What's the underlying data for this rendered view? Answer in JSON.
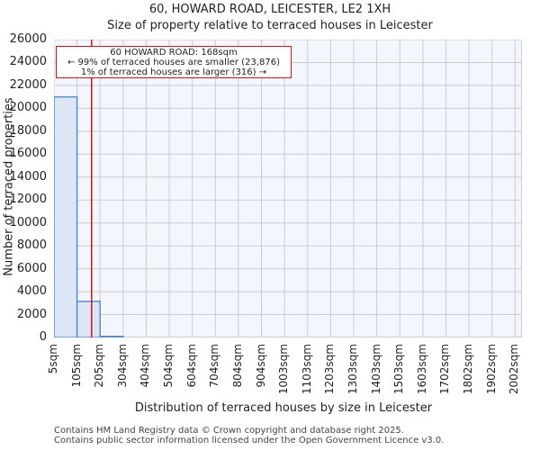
{
  "header": {
    "title": "60, HOWARD ROAD, LEICESTER, LE2 1XH",
    "subtitle": "Size of property relative to terraced houses in Leicester"
  },
  "annotation": {
    "line1": "60 HOWARD ROAD: 168sqm",
    "line2": "← 99% of terraced houses are smaller (23,876)",
    "line3": "1% of terraced houses are larger (316) →"
  },
  "axes": {
    "xlabel": "Distribution of terraced houses by size in Leicester",
    "ylabel": "Number of terraced properties",
    "yticks": [
      "0",
      "2000",
      "4000",
      "6000",
      "8000",
      "10000",
      "12000",
      "14000",
      "16000",
      "18000",
      "20000",
      "22000",
      "24000",
      "26000"
    ],
    "xticks": [
      "5sqm",
      "105sqm",
      "205sqm",
      "304sqm",
      "404sqm",
      "504sqm",
      "604sqm",
      "704sqm",
      "804sqm",
      "904sqm",
      "1003sqm",
      "1103sqm",
      "1203sqm",
      "1303sqm",
      "1403sqm",
      "1503sqm",
      "1603sqm",
      "1702sqm",
      "1802sqm",
      "1902sqm",
      "2002sqm"
    ]
  },
  "footer": {
    "line1": "Contains HM Land Registry data © Crown copyright and database right 2025.",
    "line2": "Contains public sector information licensed under the Open Government Licence v3.0."
  },
  "colors": {
    "bar_fill": "#dce6f4",
    "bar_edge": "#5b8ccc",
    "marker_line": "#c0161c",
    "plot_bg": "#f3f6fd",
    "grid": "#cccccc"
  },
  "chart_data": {
    "type": "bar",
    "title": "60, HOWARD ROAD, LEICESTER, LE2 1XH — Size of property relative to terraced houses in Leicester",
    "xlabel": "Distribution of terraced houses by size in Leicester",
    "ylabel": "Number of terraced properties",
    "categories": [
      "5sqm",
      "105sqm",
      "205sqm",
      "304sqm",
      "404sqm",
      "504sqm",
      "604sqm",
      "704sqm",
      "804sqm",
      "904sqm",
      "1003sqm",
      "1103sqm",
      "1203sqm",
      "1303sqm",
      "1403sqm",
      "1503sqm",
      "1603sqm",
      "1702sqm",
      "1802sqm",
      "1902sqm"
    ],
    "values": [
      21000,
      3150,
      100,
      0,
      0,
      0,
      0,
      0,
      0,
      0,
      0,
      0,
      0,
      0,
      0,
      0,
      0,
      0,
      0,
      0
    ],
    "ylim": [
      0,
      26000
    ],
    "grid": true,
    "marker": {
      "value_sqm": 168,
      "label": "60 HOWARD ROAD: 168sqm"
    },
    "annotations": [
      "60 HOWARD ROAD: 168sqm",
      "← 99% of terraced houses are smaller (23,876)",
      "1% of terraced houses are larger (316) →"
    ]
  }
}
